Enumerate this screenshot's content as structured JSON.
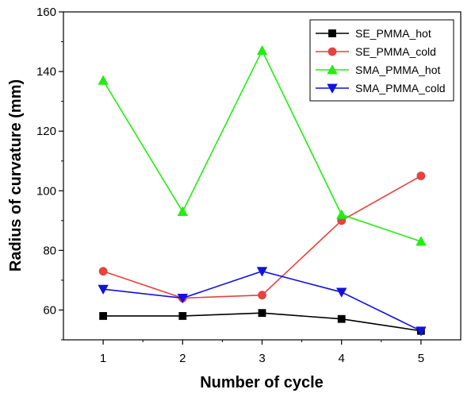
{
  "chart_data": {
    "type": "line",
    "xlabel": "Number of cycle",
    "ylabel": "Radius of curvature (mm)",
    "x": [
      1,
      2,
      3,
      4,
      5
    ],
    "xlim": [
      0.5,
      5.5
    ],
    "ylim": [
      50,
      160
    ],
    "xticks": [
      1,
      2,
      3,
      4,
      5
    ],
    "yticks": [
      60,
      80,
      100,
      120,
      140,
      160
    ],
    "grid": false,
    "legend_position": "top-right",
    "series": [
      {
        "name": "SE_PMMA_hot",
        "color": "#000000",
        "marker": "square",
        "values": [
          58,
          58,
          59,
          57,
          53
        ]
      },
      {
        "name": "SE_PMMA_cold",
        "color": "#e8413f",
        "marker": "circle",
        "values": [
          73,
          64,
          65,
          90,
          105
        ]
      },
      {
        "name": "SMA_PMMA_hot",
        "color": "#22ee11",
        "marker": "triangle-up",
        "values": [
          137,
          93,
          147,
          92,
          83
        ]
      },
      {
        "name": "SMA_PMMA_cold",
        "color": "#1111dd",
        "marker": "triangle-down",
        "values": [
          67,
          64,
          73,
          66,
          53
        ]
      }
    ]
  }
}
